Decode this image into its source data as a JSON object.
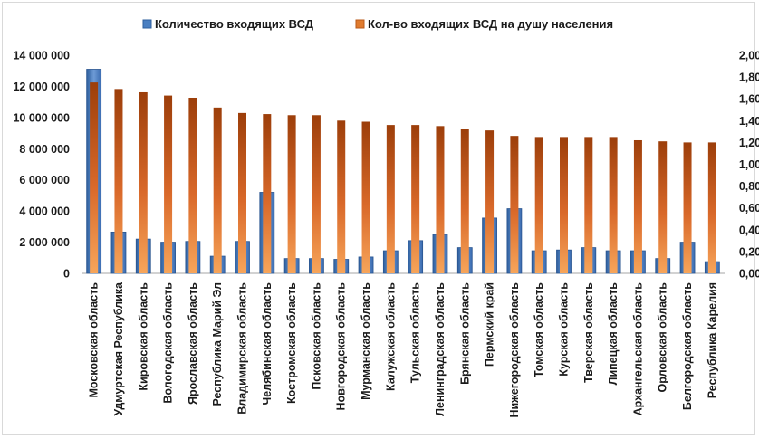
{
  "chart_data": {
    "type": "bar",
    "title": "",
    "categories": [
      "Московская область",
      "Удмуртская Республика",
      "Кировская область",
      "Вологодская область",
      "Ярославская область",
      "Республика Марий Эл",
      "Владимирская область",
      "Челябинская область",
      "Костромская область",
      "Псковская область",
      "Новгородская область",
      "Мурманская область",
      "Калужская область",
      "Тульская область",
      "Ленинградская область",
      "Брянская область",
      "Пермский край",
      "Нижегородская область",
      "Томская область",
      "Курская область",
      "Тверская область",
      "Липецкая область",
      "Архангельская область",
      "Орловская область",
      "Белгородская область",
      "Республика Карелия"
    ],
    "series": [
      {
        "name": "Количество входящих ВСД",
        "axis": "left",
        "color": "#4a7fc1",
        "values": [
          13100000,
          2650000,
          2200000,
          2000000,
          2050000,
          1100000,
          2050000,
          5200000,
          950000,
          950000,
          900000,
          1050000,
          1450000,
          2100000,
          2500000,
          1650000,
          3550000,
          4150000,
          1450000,
          1500000,
          1650000,
          1450000,
          1450000,
          950000,
          2000000,
          750000
        ]
      },
      {
        "name": "Кол-во входящих ВСД на душу населения",
        "axis": "right",
        "color": "#e07b2e",
        "values": [
          1.75,
          1.69,
          1.66,
          1.63,
          1.61,
          1.52,
          1.47,
          1.46,
          1.45,
          1.45,
          1.4,
          1.39,
          1.36,
          1.36,
          1.35,
          1.32,
          1.31,
          1.26,
          1.25,
          1.25,
          1.25,
          1.25,
          1.22,
          1.21,
          1.2,
          1.2
        ]
      }
    ],
    "y_left": {
      "lim": [
        0,
        14000000
      ],
      "ticks": [
        0,
        2000000,
        4000000,
        6000000,
        8000000,
        10000000,
        12000000,
        14000000
      ],
      "tick_labels": [
        "0",
        "2 000 000",
        "4 000 000",
        "6 000 000",
        "8 000 000",
        "10 000 000",
        "12 000 000",
        "14 000 000"
      ]
    },
    "y_right": {
      "lim": [
        0,
        2
      ],
      "ticks": [
        0,
        0.2,
        0.4,
        0.6,
        0.8,
        1.0,
        1.2,
        1.4,
        1.6,
        1.8,
        2.0
      ],
      "tick_labels": [
        "0,00",
        "0,20",
        "0,40",
        "0,60",
        "0,80",
        "1,00",
        "1,20",
        "1,40",
        "1,60",
        "1,80",
        "2,00"
      ]
    },
    "legend_position": "top-center",
    "grid": false
  },
  "colors": {
    "blue_fill_top": "#2e5f9e",
    "blue_fill_bottom": "#6d9bd6",
    "orange_fill_top": "#9c3e0a",
    "orange_fill_bottom": "#f7a55a"
  }
}
